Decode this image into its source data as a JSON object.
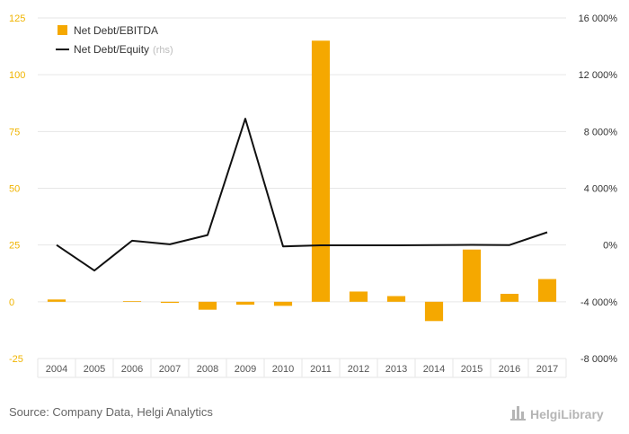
{
  "chart_data": {
    "type": "bar",
    "categories": [
      "2004",
      "2005",
      "2006",
      "2007",
      "2008",
      "2009",
      "2010",
      "2011",
      "2012",
      "2013",
      "2014",
      "2015",
      "2016",
      "2017"
    ],
    "series": [
      {
        "name": "Net Debt/EBITDA",
        "type": "bar",
        "axis": "left",
        "color": "#f5a800",
        "values": [
          1,
          0,
          0.3,
          -0.5,
          -3.5,
          -1.3,
          -1.8,
          115,
          4.5,
          2.5,
          -8.5,
          23,
          3.5,
          10
        ]
      },
      {
        "name": "Net Debt/Equity",
        "name_suffix": "(rhs)",
        "type": "line",
        "axis": "right",
        "color": "#111111",
        "values": [
          0,
          -1800,
          300,
          50,
          700,
          8900,
          -100,
          -20,
          -20,
          -20,
          0,
          10,
          0,
          900
        ]
      }
    ],
    "y_left": {
      "range": [
        -25,
        125
      ],
      "ticks": [
        -25,
        0,
        25,
        50,
        75,
        100,
        125
      ],
      "tick_labels": [
        "-25",
        "0",
        "25",
        "50",
        "75",
        "100",
        "125"
      ]
    },
    "y_right": {
      "range": [
        -8000,
        16000
      ],
      "ticks": [
        -8000,
        -4000,
        0,
        4000,
        8000,
        12000,
        16000
      ],
      "tick_labels": [
        "-8 000%",
        "-4 000%",
        "0%",
        "4 000%",
        "8 000%",
        "12 000%",
        "16 000%"
      ]
    },
    "grid": true,
    "legend": "top-left"
  },
  "footer": {
    "source": "Source: Company Data, Helgi Analytics",
    "brand": "HelgiLibrary"
  }
}
